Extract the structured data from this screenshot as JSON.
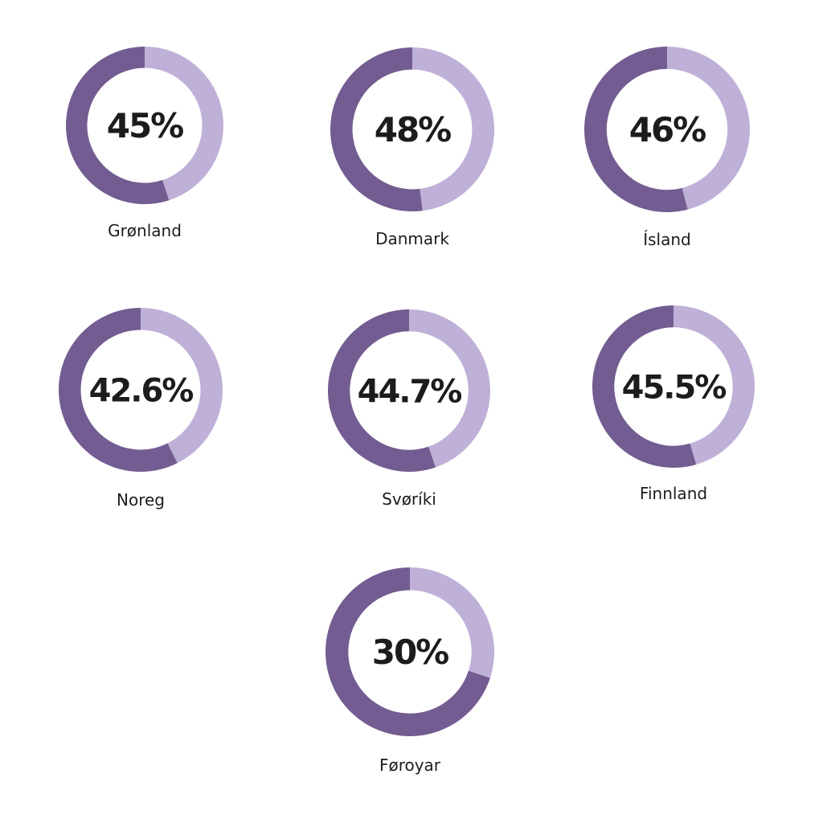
{
  "chart_data": [
    {
      "type": "pie",
      "variant": "donut",
      "label": "Grønland",
      "value": 45,
      "value_label": "45%"
    },
    {
      "type": "pie",
      "variant": "donut",
      "label": "Danmark",
      "value": 48,
      "value_label": "48%"
    },
    {
      "type": "pie",
      "variant": "donut",
      "label": "Ísland",
      "value": 46,
      "value_label": "46%"
    },
    {
      "type": "pie",
      "variant": "donut",
      "label": "Noreg",
      "value": 42.6,
      "value_label": "42.6%"
    },
    {
      "type": "pie",
      "variant": "donut",
      "label": "Svøríki",
      "value": 44.7,
      "value_label": "44.7%"
    },
    {
      "type": "pie",
      "variant": "donut",
      "label": "Finnland",
      "value": 45.5,
      "value_label": "45.5%"
    },
    {
      "type": "pie",
      "variant": "donut",
      "label": "Føroyar",
      "value": 30,
      "value_label": "30%"
    }
  ],
  "colors": {
    "value_segment": "#bfb0d8",
    "remainder_segment": "#735c91",
    "text": "#1c1c1c"
  }
}
